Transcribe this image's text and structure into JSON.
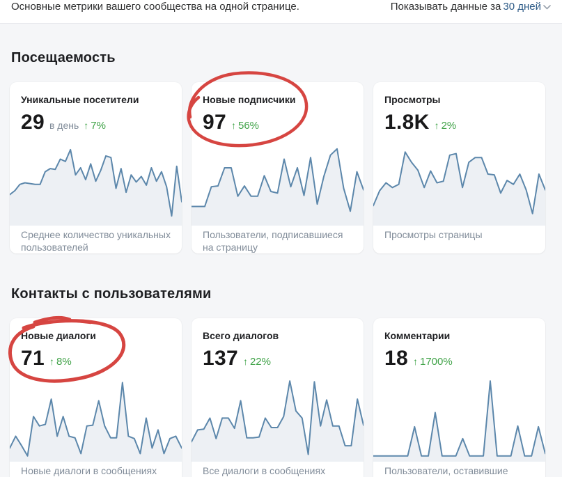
{
  "header": {
    "subtitle": "Основные метрики вашего сообщества на одной странице.",
    "period_label": "Показывать данные за",
    "period_value": "30 дней"
  },
  "icons": {
    "up_arrow": "↑",
    "chevron_down": "chevron-down"
  },
  "colors": {
    "link_blue": "#2a5885",
    "positive_green": "#3fa247",
    "spark_line": "#5c87ab",
    "spark_fill": "#edf0f4",
    "annotation_red": "#d64541",
    "page_background": "#f5f6f8",
    "card_background": "#ffffff",
    "muted_text": "#818c99"
  },
  "sections": [
    {
      "title": "Посещаемость",
      "cards": [
        {
          "title": "Уникальные посетители",
          "value": "29",
          "value_suffix": "в день",
          "delta": "7%",
          "delta_direction": "up",
          "caption": "Среднее количество уникальных пользователей",
          "circled": false
        },
        {
          "title": "Новые подписчики",
          "value": "97",
          "value_suffix": "",
          "delta": "56%",
          "delta_direction": "up",
          "caption": "Пользователи, подписавшиеся на страницу",
          "circled": true
        },
        {
          "title": "Просмотры",
          "value": "1.8K",
          "value_suffix": "",
          "delta": "2%",
          "delta_direction": "up",
          "caption": "Просмотры страницы",
          "circled": false
        }
      ]
    },
    {
      "title": "Контакты с пользователями",
      "cards": [
        {
          "title": "Новые диалоги",
          "value": "71",
          "value_suffix": "",
          "delta": "8%",
          "delta_direction": "up",
          "caption": "Новые диалоги в сообщениях сообщества",
          "circled": true
        },
        {
          "title": "Всего диалогов",
          "value": "137",
          "value_suffix": "",
          "delta": "22%",
          "delta_direction": "up",
          "caption": "Все диалоги в сообщениях сообщества",
          "circled": false
        },
        {
          "title": "Комментарии",
          "value": "18",
          "value_suffix": "",
          "delta": "1700%",
          "delta_direction": "up",
          "caption": "Пользователи, оставившие комментарии",
          "circled": false
        }
      ]
    }
  ],
  "chart_data": [
    {
      "type": "line",
      "name": "Уникальные посетители (30 дней, относительная шкала)",
      "values": [
        37,
        42,
        50,
        52,
        51,
        50,
        50,
        66,
        70,
        69,
        82,
        79,
        94,
        62,
        71,
        56,
        76,
        54,
        68,
        86,
        84,
        45,
        70,
        40,
        62,
        53,
        60,
        49,
        71,
        54,
        66,
        47,
        10,
        73,
        28
      ]
    },
    {
      "type": "line",
      "name": "Новые подписчики (30 дней, относительная шкала)",
      "values": [
        22,
        22,
        22,
        47,
        48,
        71,
        71,
        35,
        48,
        35,
        35,
        61,
        41,
        39,
        82,
        47,
        71,
        36,
        84,
        25,
        60,
        87,
        95,
        45,
        16,
        66,
        43
      ]
    },
    {
      "type": "line",
      "name": "Просмотры (30 дней, относительная шкала)",
      "values": [
        23,
        42,
        52,
        46,
        50,
        91,
        78,
        68,
        46,
        67,
        52,
        54,
        87,
        89,
        46,
        78,
        84,
        84,
        63,
        62,
        39,
        55,
        50,
        63,
        43,
        13,
        63,
        43
      ]
    },
    {
      "type": "line",
      "name": "Новые диалоги (30 дней, относительная шкала)",
      "values": [
        15,
        30,
        18,
        5,
        55,
        43,
        45,
        77,
        30,
        55,
        30,
        28,
        8,
        43,
        44,
        75,
        43,
        28,
        28,
        98,
        30,
        27,
        8,
        53,
        15,
        38,
        8,
        27,
        30,
        15
      ]
    },
    {
      "type": "line",
      "name": "Всего диалогов (30 дней, относительная шкала)",
      "values": [
        23,
        38,
        39,
        53,
        27,
        53,
        53,
        40,
        75,
        28,
        28,
        29,
        53,
        41,
        41,
        55,
        100,
        62,
        53,
        7,
        99,
        43,
        76,
        43,
        43,
        18,
        18,
        77,
        44
      ]
    },
    {
      "type": "line",
      "name": "Комментарии (30 дней, относительная шкала)",
      "values": [
        5,
        5,
        5,
        5,
        5,
        5,
        42,
        5,
        5,
        60,
        5,
        5,
        5,
        27,
        5,
        5,
        5,
        100,
        5,
        5,
        5,
        43,
        5,
        5,
        42,
        8
      ]
    }
  ]
}
